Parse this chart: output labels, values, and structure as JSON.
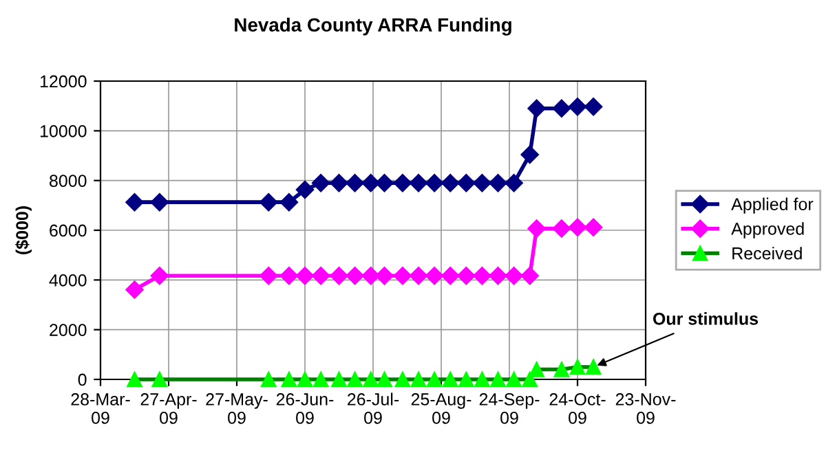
{
  "chart_data": {
    "type": "line",
    "title": "Nevada County ARRA Funding",
    "ylabel": "($000)",
    "x": [
      "2009-04-12",
      "2009-04-23",
      "2009-06-10",
      "2009-06-19",
      "2009-06-26",
      "2009-07-03",
      "2009-07-11",
      "2009-07-18",
      "2009-07-25",
      "2009-07-31",
      "2009-08-08",
      "2009-08-15",
      "2009-08-22",
      "2009-08-29",
      "2009-09-05",
      "2009-09-12",
      "2009-09-19",
      "2009-09-26",
      "2009-10-03",
      "2009-10-06",
      "2009-10-17",
      "2009-10-24",
      "2009-10-31"
    ],
    "series": [
      {
        "name": "Applied for",
        "color": "#000080",
        "marker": "diamond",
        "values": [
          7130,
          7130,
          7130,
          7130,
          7630,
          7900,
          7900,
          7900,
          7900,
          7900,
          7900,
          7900,
          7900,
          7900,
          7900,
          7900,
          7900,
          7900,
          9040,
          10900,
          10900,
          10970,
          10970
        ]
      },
      {
        "name": "Approved",
        "color": "#ff00ff",
        "marker": "diamond",
        "values": [
          3610,
          4170,
          4170,
          4170,
          4170,
          4170,
          4170,
          4170,
          4170,
          4170,
          4170,
          4170,
          4170,
          4170,
          4170,
          4170,
          4170,
          4170,
          4170,
          6070,
          6070,
          6120,
          6120
        ]
      },
      {
        "name": "Received",
        "color": "#008000",
        "marker": "triangle",
        "values": [
          0,
          0,
          0,
          0,
          0,
          0,
          0,
          0,
          0,
          0,
          0,
          0,
          0,
          0,
          0,
          0,
          0,
          0,
          0,
          400,
          400,
          500,
          500
        ]
      }
    ],
    "xlim": [
      "2009-03-28",
      "2009-11-23"
    ],
    "xticks": [
      {
        "value": "2009-03-28",
        "label": "28-Mar-09"
      },
      {
        "value": "2009-04-27",
        "label": "27-Apr-09"
      },
      {
        "value": "2009-05-27",
        "label": "27-May-09"
      },
      {
        "value": "2009-06-26",
        "label": "26-Jun-09"
      },
      {
        "value": "2009-07-26",
        "label": "26-Jul-09"
      },
      {
        "value": "2009-08-25",
        "label": "25-Aug-09"
      },
      {
        "value": "2009-09-24",
        "label": "24-Sep-09"
      },
      {
        "value": "2009-10-24",
        "label": "24-Oct-09"
      },
      {
        "value": "2009-11-23",
        "label": "23-Nov-09"
      }
    ],
    "ylim": [
      0,
      12000
    ],
    "yticks": [
      0,
      2000,
      4000,
      6000,
      8000,
      10000,
      12000
    ],
    "grid": true,
    "legend": "right",
    "annotations": [
      {
        "text": "Our stimulus",
        "x": "2009-10-31",
        "y": 500
      }
    ]
  }
}
